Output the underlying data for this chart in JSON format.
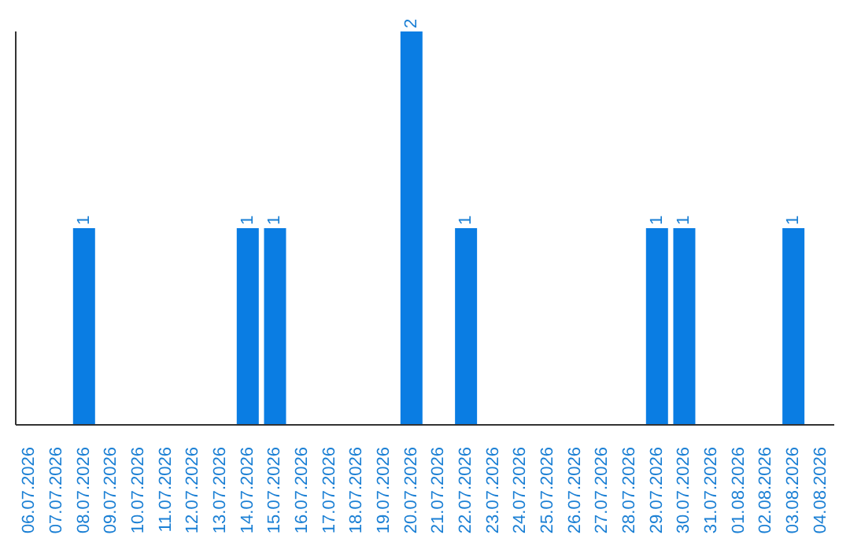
{
  "chart_data": {
    "type": "bar",
    "categories": [
      "06.07.2026",
      "07.07.2026",
      "08.07.2026",
      "09.07.2026",
      "10.07.2026",
      "11.07.2026",
      "12.07.2026",
      "13.07.2026",
      "14.07.2026",
      "15.07.2026",
      "16.07.2026",
      "17.07.2026",
      "18.07.2026",
      "19.07.2026",
      "20.07.2026",
      "21.07.2026",
      "22.07.2026",
      "23.07.2026",
      "24.07.2026",
      "25.07.2026",
      "26.07.2026",
      "27.07.2026",
      "28.07.2026",
      "29.07.2026",
      "30.07.2026",
      "31.07.2026",
      "01.08.2026",
      "02.08.2026",
      "03.08.2026",
      "04.08.2026"
    ],
    "values": [
      0,
      0,
      1,
      0,
      0,
      0,
      0,
      0,
      1,
      1,
      0,
      0,
      0,
      0,
      2,
      0,
      1,
      0,
      0,
      0,
      0,
      0,
      0,
      1,
      1,
      0,
      0,
      0,
      1,
      0
    ],
    "value_labels": [
      null,
      null,
      "1",
      null,
      null,
      null,
      null,
      null,
      "1",
      "1",
      null,
      null,
      null,
      null,
      "2",
      null,
      "1",
      null,
      null,
      null,
      null,
      null,
      null,
      "1",
      "1",
      null,
      null,
      null,
      "1",
      null
    ],
    "color": "#0a7de3",
    "grid": false,
    "legend": false
  }
}
